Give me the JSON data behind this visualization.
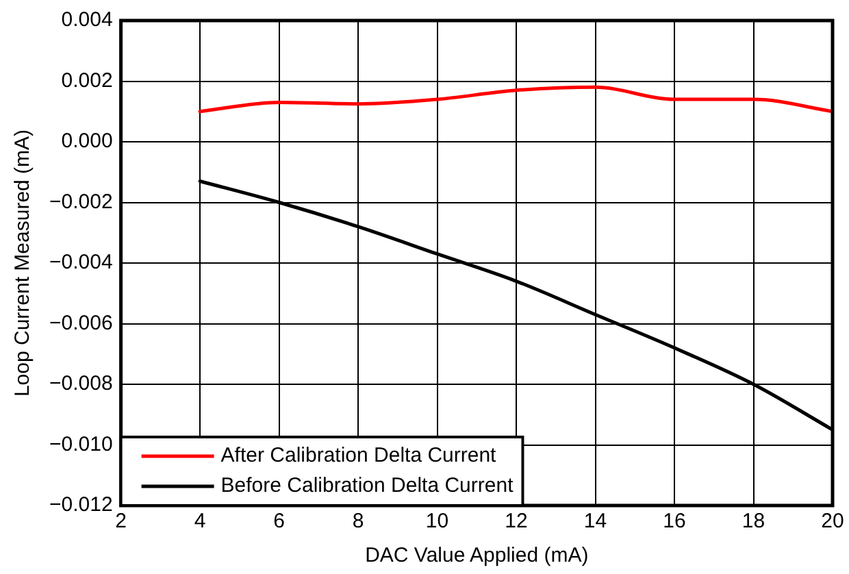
{
  "chart_data": {
    "type": "line",
    "xlabel": "DAC Value Applied (mA)",
    "ylabel": "Loop Current Measured (mA)",
    "x": [
      4,
      6,
      8,
      10,
      12,
      14,
      16,
      18,
      20
    ],
    "series": [
      {
        "name": "After Calibration Delta Current",
        "color": "#ff0000",
        "values": [
          0.001,
          0.0013,
          0.00125,
          0.0014,
          0.0017,
          0.0018,
          0.0014,
          0.0014,
          0.001
        ]
      },
      {
        "name": "Before Calibration Delta Current",
        "color": "#000000",
        "values": [
          -0.0013,
          -0.002,
          -0.0028,
          -0.0037,
          -0.0046,
          -0.0057,
          -0.0068,
          -0.008,
          -0.0095
        ]
      }
    ],
    "xlim": [
      2,
      20
    ],
    "xticks": [
      2,
      4,
      6,
      8,
      10,
      12,
      14,
      16,
      18,
      20
    ],
    "ylim": [
      -0.012,
      0.004
    ],
    "yticks": [
      {
        "value": -0.012,
        "label": "−0.012"
      },
      {
        "value": -0.01,
        "label": "−0.010"
      },
      {
        "value": -0.008,
        "label": "−0.008"
      },
      {
        "value": -0.006,
        "label": "−0.006"
      },
      {
        "value": -0.004,
        "label": "−0.004"
      },
      {
        "value": -0.002,
        "label": "−0.002"
      },
      {
        "value": 0,
        "label": "0.000"
      },
      {
        "value": 0.002,
        "label": "0.002"
      },
      {
        "value": 0.004,
        "label": "0.004"
      }
    ],
    "grid": true,
    "legend": "bottom left",
    "marker": "none",
    "line_style": "solid"
  }
}
